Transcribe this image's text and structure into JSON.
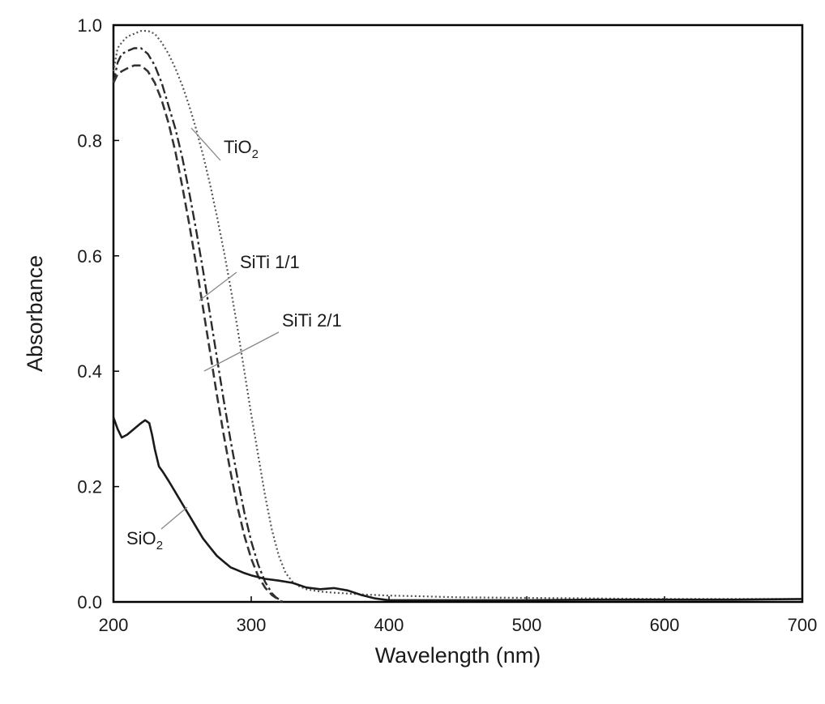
{
  "chart_data": {
    "type": "line",
    "xlabel": "Wavelength (nm)",
    "ylabel": "Absorbance",
    "xlim": [
      200,
      700
    ],
    "ylim": [
      0,
      1.0
    ],
    "x_ticks": [
      "200",
      "300",
      "400",
      "500",
      "600",
      "700"
    ],
    "y_ticks": [
      "0.0",
      "0.2",
      "0.4",
      "0.6",
      "0.8",
      "1.0"
    ],
    "grid": false,
    "legend": "none",
    "series": [
      {
        "name": "TiO2",
        "label_main": "TiO",
        "label_sub": "2",
        "style": "dotted",
        "x": [
          200,
          203,
          206,
          210,
          215,
          220,
          225,
          230,
          235,
          240,
          245,
          250,
          255,
          260,
          265,
          270,
          275,
          280,
          285,
          290,
          295,
          300,
          305,
          310,
          315,
          320,
          325,
          330,
          335,
          340,
          345,
          350,
          360,
          380,
          400,
          420,
          450,
          500,
          550,
          600,
          650,
          700
        ],
        "y": [
          0.92,
          0.96,
          0.97,
          0.98,
          0.985,
          0.99,
          0.99,
          0.985,
          0.97,
          0.95,
          0.925,
          0.895,
          0.86,
          0.82,
          0.775,
          0.725,
          0.67,
          0.61,
          0.545,
          0.475,
          0.4,
          0.325,
          0.255,
          0.185,
          0.125,
          0.08,
          0.05,
          0.035,
          0.027,
          0.022,
          0.02,
          0.018,
          0.016,
          0.013,
          0.011,
          0.01,
          0.008,
          0.007,
          0.006,
          0.005,
          0.005,
          0.005
        ]
      },
      {
        "name": "SiTi 1/1",
        "label": "SiTi 1/1",
        "style": "dashdot",
        "x": [
          200,
          203,
          206,
          210,
          215,
          220,
          225,
          230,
          235,
          240,
          245,
          250,
          255,
          260,
          265,
          270,
          275,
          280,
          285,
          290,
          295,
          300,
          305,
          310,
          315,
          318,
          321,
          323
        ],
        "y": [
          0.9,
          0.935,
          0.95,
          0.955,
          0.96,
          0.96,
          0.95,
          0.93,
          0.9,
          0.86,
          0.82,
          0.77,
          0.71,
          0.645,
          0.575,
          0.5,
          0.425,
          0.35,
          0.28,
          0.215,
          0.155,
          0.105,
          0.065,
          0.035,
          0.015,
          0.008,
          0.003,
          0.0
        ]
      },
      {
        "name": "SiTi 2/1",
        "label": "SiTi 2/1",
        "style": "dashed",
        "x": [
          200,
          203,
          206,
          210,
          215,
          220,
          225,
          230,
          235,
          240,
          245,
          250,
          255,
          260,
          265,
          270,
          275,
          280,
          285,
          290,
          295,
          300,
          305,
          310,
          315,
          320,
          322
        ],
        "y": [
          0.9,
          0.915,
          0.92,
          0.925,
          0.93,
          0.93,
          0.92,
          0.9,
          0.87,
          0.83,
          0.78,
          0.72,
          0.655,
          0.585,
          0.51,
          0.435,
          0.36,
          0.29,
          0.225,
          0.165,
          0.115,
          0.075,
          0.045,
          0.025,
          0.012,
          0.004,
          0.0
        ]
      },
      {
        "name": "SiO2",
        "label_main": "SiO",
        "label_sub": "2",
        "style": "solid",
        "x": [
          200,
          203,
          206,
          210,
          215,
          220,
          223,
          226,
          228,
          230,
          233,
          236,
          240,
          245,
          250,
          255,
          260,
          265,
          270,
          275,
          280,
          285,
          290,
          295,
          300,
          305,
          310,
          320,
          330,
          340,
          350,
          360,
          370,
          380,
          390,
          400,
          450,
          500,
          550,
          600,
          650,
          700
        ],
        "y": [
          0.32,
          0.3,
          0.285,
          0.29,
          0.3,
          0.31,
          0.315,
          0.31,
          0.29,
          0.265,
          0.235,
          0.225,
          0.21,
          0.19,
          0.17,
          0.15,
          0.13,
          0.11,
          0.095,
          0.08,
          0.07,
          0.06,
          0.055,
          0.05,
          0.046,
          0.043,
          0.04,
          0.037,
          0.033,
          0.025,
          0.022,
          0.024,
          0.02,
          0.012,
          0.006,
          0.003,
          0.003,
          0.003,
          0.004,
          0.004,
          0.004,
          0.005
        ]
      }
    ]
  }
}
